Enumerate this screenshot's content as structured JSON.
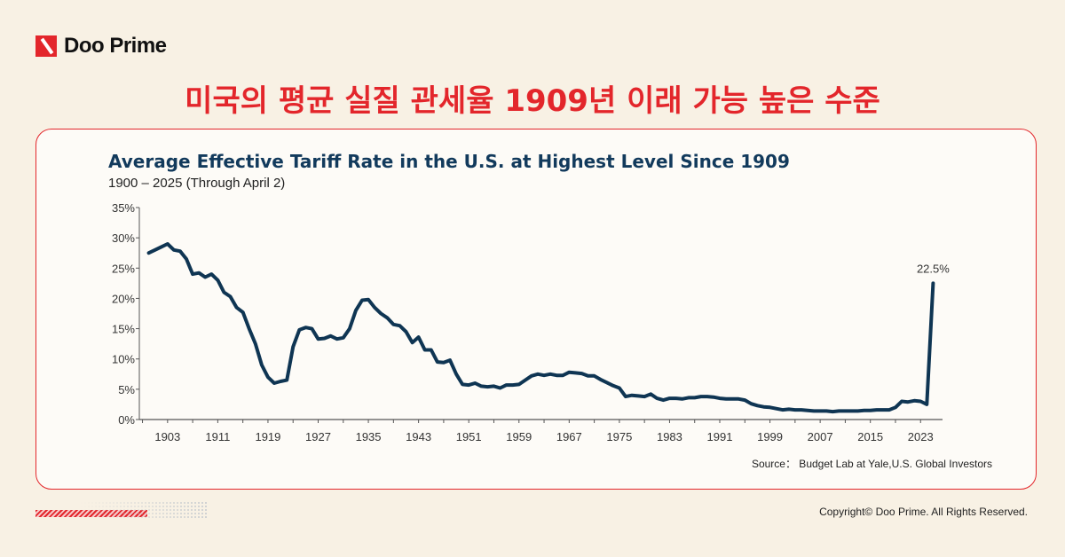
{
  "brand": {
    "name": "Doo Prime",
    "accent": "#e3262b"
  },
  "headline": "미국의 평균 실질 관세율 1909년 이래 가능 높은 수준",
  "footer": {
    "copyright": "Copyright© Doo Prime. All Rights Reserved."
  },
  "chart_data": {
    "type": "line",
    "title": "Average Effective Tariff Rate in the U.S. at Highest Level Since 1909",
    "subtitle": "1900 – 2025 (Through April 2)",
    "source": "Source： Budget Lab at Yale,U.S. Global Investors",
    "xlabel": "",
    "ylabel": "",
    "xlim": [
      1898.5,
      2026.5
    ],
    "ylim": [
      0,
      35
    ],
    "yticks": [
      "0%",
      "5%",
      "10%",
      "15%",
      "20%",
      "25%",
      "30%",
      "35%"
    ],
    "xticks": [
      "1903",
      "1911",
      "1919",
      "1927",
      "1935",
      "1943",
      "1951",
      "1959",
      "1967",
      "1975",
      "1983",
      "1991",
      "1999",
      "2007",
      "2015",
      "2023"
    ],
    "grid": false,
    "line_color": "#0f3553",
    "annotation": {
      "text": "22.5%",
      "x": 2025,
      "y": 22.5
    },
    "x": [
      1900,
      1901,
      1902,
      1903,
      1904,
      1905,
      1906,
      1907,
      1908,
      1909,
      1910,
      1911,
      1912,
      1913,
      1914,
      1915,
      1916,
      1917,
      1918,
      1919,
      1920,
      1921,
      1922,
      1923,
      1924,
      1925,
      1926,
      1927,
      1928,
      1929,
      1930,
      1931,
      1932,
      1933,
      1934,
      1935,
      1936,
      1937,
      1938,
      1939,
      1940,
      1941,
      1942,
      1943,
      1944,
      1945,
      1946,
      1947,
      1948,
      1949,
      1950,
      1951,
      1952,
      1953,
      1954,
      1955,
      1956,
      1957,
      1958,
      1959,
      1960,
      1961,
      1962,
      1963,
      1964,
      1965,
      1966,
      1967,
      1968,
      1969,
      1970,
      1971,
      1972,
      1973,
      1974,
      1975,
      1976,
      1977,
      1978,
      1979,
      1980,
      1981,
      1982,
      1983,
      1984,
      1985,
      1986,
      1987,
      1988,
      1989,
      1990,
      1991,
      1992,
      1993,
      1994,
      1995,
      1996,
      1997,
      1998,
      1999,
      2000,
      2001,
      2002,
      2003,
      2004,
      2005,
      2006,
      2007,
      2008,
      2009,
      2010,
      2011,
      2012,
      2013,
      2014,
      2015,
      2016,
      2017,
      2018,
      2019,
      2020,
      2021,
      2022,
      2023,
      2024,
      2025
    ],
    "values": [
      27.5,
      28,
      28.5,
      29,
      28,
      27.8,
      26.5,
      24,
      24.2,
      23.5,
      24,
      23,
      21,
      20.3,
      18.5,
      17.7,
      15,
      12.5,
      9,
      7,
      6,
      6.3,
      6.5,
      12,
      14.8,
      15.2,
      15,
      13.3,
      13.4,
      13.8,
      13.3,
      13.5,
      15,
      18,
      19.7,
      19.8,
      18.5,
      17.5,
      16.8,
      15.7,
      15.5,
      14.5,
      12.7,
      13.6,
      11.5,
      11.5,
      9.5,
      9.4,
      9.8,
      7.5,
      5.8,
      5.7,
      6,
      5.5,
      5.4,
      5.5,
      5.2,
      5.7,
      5.7,
      5.8,
      6.5,
      7.2,
      7.5,
      7.3,
      7.5,
      7.3,
      7.3,
      7.8,
      7.7,
      7.6,
      7.2,
      7.2,
      6.6,
      6.1,
      5.6,
      5.2,
      3.8,
      4,
      3.9,
      3.8,
      4.2,
      3.5,
      3.2,
      3.5,
      3.5,
      3.4,
      3.6,
      3.6,
      3.8,
      3.8,
      3.7,
      3.5,
      3.4,
      3.4,
      3.4,
      3.2,
      2.6,
      2.3,
      2.1,
      2.0,
      1.8,
      1.6,
      1.7,
      1.6,
      1.6,
      1.5,
      1.4,
      1.4,
      1.4,
      1.3,
      1.4,
      1.4,
      1.4,
      1.4,
      1.5,
      1.5,
      1.6,
      1.6,
      1.6,
      2,
      3,
      2.9,
      3.1,
      3.0,
      2.5,
      22.5
    ]
  }
}
